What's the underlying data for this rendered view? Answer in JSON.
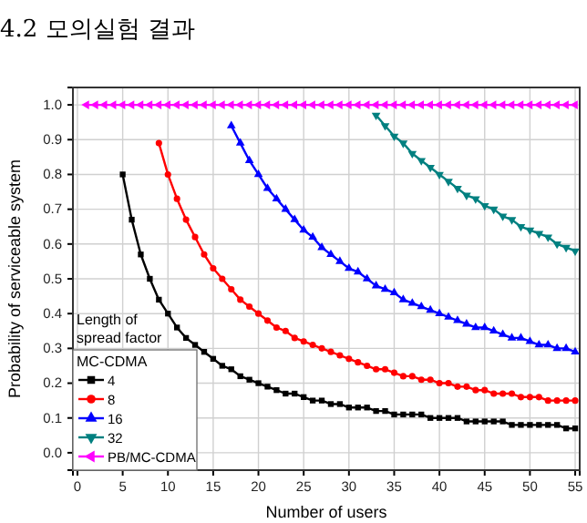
{
  "chart_data": {
    "type": "line",
    "title": "4.2 모의실험 결과",
    "xlabel": "Number of users",
    "ylabel": "Probability of serviceable system",
    "legend_title": "Length of spread factor",
    "annotations": [
      "MC-CDMA"
    ],
    "x": [
      1,
      2,
      3,
      4,
      5,
      6,
      7,
      8,
      9,
      10,
      11,
      12,
      13,
      14,
      15,
      16,
      17,
      18,
      19,
      20,
      21,
      22,
      23,
      24,
      25,
      26,
      27,
      28,
      29,
      30,
      31,
      32,
      33,
      34,
      35,
      36,
      37,
      38,
      39,
      40,
      41,
      42,
      43,
      44,
      45,
      46,
      47,
      48,
      49,
      50,
      51,
      52,
      53,
      54,
      55
    ],
    "series": [
      {
        "name": "4",
        "color": "#000000",
        "marker": "square",
        "values": [
          null,
          null,
          null,
          null,
          0.8,
          0.67,
          0.57,
          0.5,
          0.44,
          0.4,
          0.36,
          0.33,
          0.31,
          0.29,
          0.27,
          0.25,
          0.24,
          0.22,
          0.21,
          0.2,
          0.19,
          0.18,
          0.17,
          0.17,
          0.16,
          0.15,
          0.15,
          0.14,
          0.14,
          0.13,
          0.13,
          0.13,
          0.12,
          0.12,
          0.11,
          0.11,
          0.11,
          0.11,
          0.1,
          0.1,
          0.1,
          0.1,
          0.09,
          0.09,
          0.09,
          0.09,
          0.09,
          0.08,
          0.08,
          0.08,
          0.08,
          0.08,
          0.08,
          0.07,
          0.07
        ]
      },
      {
        "name": "8",
        "color": "#ff0000",
        "marker": "circle",
        "values": [
          null,
          null,
          null,
          null,
          null,
          null,
          null,
          null,
          0.89,
          0.8,
          0.73,
          0.67,
          0.62,
          0.57,
          0.53,
          0.5,
          0.47,
          0.44,
          0.42,
          0.4,
          0.38,
          0.36,
          0.35,
          0.33,
          0.32,
          0.31,
          0.3,
          0.29,
          0.28,
          0.27,
          0.26,
          0.25,
          0.24,
          0.24,
          0.23,
          0.22,
          0.22,
          0.21,
          0.21,
          0.2,
          0.2,
          0.19,
          0.19,
          0.18,
          0.18,
          0.17,
          0.17,
          0.17,
          0.16,
          0.16,
          0.16,
          0.15,
          0.15,
          0.15,
          0.15
        ]
      },
      {
        "name": "16",
        "color": "#0000ff",
        "marker": "triangle",
        "values": [
          null,
          null,
          null,
          null,
          null,
          null,
          null,
          null,
          null,
          null,
          null,
          null,
          null,
          null,
          null,
          null,
          0.94,
          0.89,
          0.84,
          0.8,
          0.76,
          0.73,
          0.7,
          0.67,
          0.64,
          0.62,
          0.59,
          0.57,
          0.55,
          0.53,
          0.52,
          0.5,
          0.48,
          0.47,
          0.46,
          0.44,
          0.43,
          0.42,
          0.41,
          0.4,
          0.39,
          0.38,
          0.37,
          0.36,
          0.36,
          0.35,
          0.34,
          0.33,
          0.33,
          0.32,
          0.31,
          0.31,
          0.3,
          0.3,
          0.29
        ]
      },
      {
        "name": "32",
        "color": "#008080",
        "marker": "triangle-down",
        "values": [
          null,
          null,
          null,
          null,
          null,
          null,
          null,
          null,
          null,
          null,
          null,
          null,
          null,
          null,
          null,
          null,
          null,
          null,
          null,
          null,
          null,
          null,
          null,
          null,
          null,
          null,
          null,
          null,
          null,
          null,
          null,
          null,
          0.97,
          0.94,
          0.91,
          0.89,
          0.86,
          0.84,
          0.82,
          0.8,
          0.78,
          0.76,
          0.74,
          0.73,
          0.71,
          0.7,
          0.68,
          0.67,
          0.65,
          0.64,
          0.63,
          0.62,
          0.6,
          0.59,
          0.58
        ]
      },
      {
        "name": "PB/MC-CDMA",
        "color": "#ff00ff",
        "marker": "triangle-left",
        "values": [
          1,
          1,
          1,
          1,
          1,
          1,
          1,
          1,
          1,
          1,
          1,
          1,
          1,
          1,
          1,
          1,
          1,
          1,
          1,
          1,
          1,
          1,
          1,
          1,
          1,
          1,
          1,
          1,
          1,
          1,
          1,
          1,
          1,
          1,
          1,
          1,
          1,
          1,
          1,
          1,
          1,
          1,
          1,
          1,
          1,
          1,
          1,
          1,
          1,
          1,
          1,
          1,
          1,
          1,
          1
        ]
      }
    ],
    "xlim": [
      -0.5,
      55.5
    ],
    "ylim": [
      -0.05,
      1.05
    ],
    "xticks": [
      0,
      5,
      10,
      15,
      20,
      25,
      30,
      35,
      40,
      45,
      50,
      55
    ],
    "yticks": [
      {
        "value": 0,
        "label": "0.0"
      },
      {
        "value": 0.1,
        "label": "0.1"
      },
      {
        "value": 0.2,
        "label": "0.2"
      },
      {
        "value": 0.3,
        "label": "0.3"
      },
      {
        "value": 0.4,
        "label": "0.4"
      },
      {
        "value": 0.5,
        "label": "0.5"
      },
      {
        "value": 0.6,
        "label": "0.6"
      },
      {
        "value": 0.7,
        "label": "0.7"
      },
      {
        "value": 0.8,
        "label": "0.8"
      },
      {
        "value": 0.9,
        "label": "0.9"
      },
      {
        "value": 1,
        "label": "1.0"
      }
    ],
    "grid": true,
    "legend": "bottom left",
    "line_style": "solid"
  }
}
